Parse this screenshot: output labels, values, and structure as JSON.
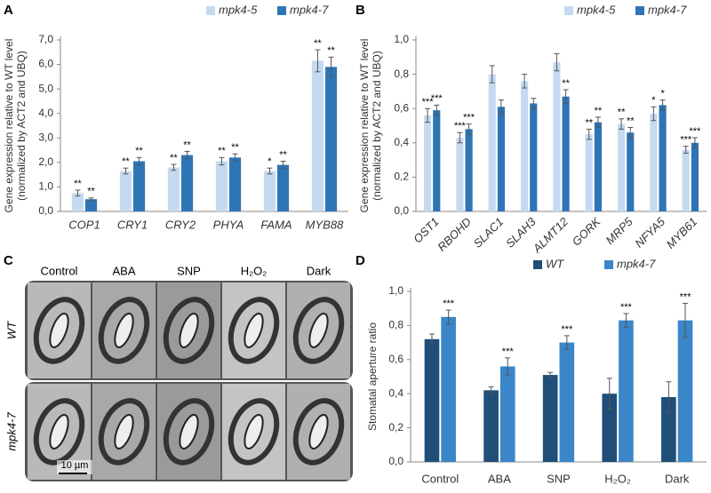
{
  "chart_data": [
    {
      "type": "bar",
      "panel": "A",
      "y_label": [
        "Gene expression relative to WT level",
        "(normalized by ACT2 and UBQ)"
      ],
      "categories": [
        "COP1",
        "CRY1",
        "CRY2",
        "PHYA",
        "FAMA",
        "MYB88"
      ],
      "series": [
        {
          "name": "mpk4-5",
          "color": "#c5daf0",
          "values": [
            0.75,
            1.65,
            1.8,
            2.05,
            1.65,
            6.15
          ],
          "errors": [
            0.12,
            0.12,
            0.12,
            0.15,
            0.12,
            0.45
          ],
          "annotations": [
            "**",
            "**",
            "**",
            "**",
            "*",
            "**"
          ]
        },
        {
          "name": "mpk4-7",
          "color": "#2e75b6",
          "values": [
            0.5,
            2.05,
            2.3,
            2.2,
            1.9,
            5.9
          ],
          "errors": [
            0.05,
            0.15,
            0.15,
            0.15,
            0.15,
            0.4
          ],
          "annotations": [
            "**",
            "**",
            "**",
            "**",
            "**",
            "**"
          ]
        }
      ],
      "ylim": [
        0,
        7
      ],
      "yticks": [
        {
          "value": 0,
          "label": "0,0"
        },
        {
          "value": 1,
          "label": "1,0"
        },
        {
          "value": 2,
          "label": "2,0"
        },
        {
          "value": 3,
          "label": "3,0"
        },
        {
          "value": 4,
          "label": "4,0"
        },
        {
          "value": 5,
          "label": "5,0"
        },
        {
          "value": 6,
          "label": "6,0"
        },
        {
          "value": 7,
          "label": "7,0"
        }
      ],
      "grid": false,
      "legend": "top-right"
    },
    {
      "type": "bar",
      "panel": "B",
      "y_label": [
        "Gene expression relative to WT level",
        "(normalized by ACT2 and UBQ)"
      ],
      "categories": [
        "OST1",
        "RBOHD",
        "SLAC1",
        "SLAH3",
        "ALMT12",
        "GORK",
        "MRP5",
        "NFYA5",
        "MYB61"
      ],
      "series": [
        {
          "name": "mpk4-5",
          "color": "#c5daf0",
          "values": [
            0.56,
            0.43,
            0.8,
            0.76,
            0.87,
            0.45,
            0.51,
            0.57,
            0.36
          ],
          "errors": [
            0.04,
            0.03,
            0.05,
            0.04,
            0.05,
            0.03,
            0.03,
            0.04,
            0.02
          ],
          "annotations": [
            "***",
            "***",
            null,
            null,
            null,
            "**",
            "**",
            "*",
            "***"
          ]
        },
        {
          "name": "mpk4-7",
          "color": "#2e75b6",
          "values": [
            0.59,
            0.48,
            0.61,
            0.63,
            0.67,
            0.52,
            0.46,
            0.62,
            0.4
          ],
          "errors": [
            0.03,
            0.03,
            0.04,
            0.03,
            0.04,
            0.03,
            0.03,
            0.03,
            0.03
          ],
          "annotations": [
            "***",
            "***",
            null,
            null,
            "**",
            "**",
            "**",
            "*",
            "***"
          ]
        }
      ],
      "ylim": [
        0,
        1
      ],
      "yticks": [
        {
          "value": 0,
          "label": "0,0"
        },
        {
          "value": 0.2,
          "label": "0,2"
        },
        {
          "value": 0.4,
          "label": "0,4"
        },
        {
          "value": 0.6,
          "label": "0,6"
        },
        {
          "value": 0.8,
          "label": "0,8"
        },
        {
          "value": 1,
          "label": "1,0"
        }
      ],
      "grid": false,
      "legend": "top-right"
    },
    {
      "type": "bar",
      "panel": "D",
      "y_label": [
        "Stomatal aperture ratio"
      ],
      "categories": [
        "Control",
        "ABA",
        "SNP",
        "H₂O₂",
        "Dark"
      ],
      "series": [
        {
          "name": "WT",
          "color": "#1f4e79",
          "values": [
            0.72,
            0.42,
            0.51,
            0.4,
            0.38
          ],
          "errors": [
            0.03,
            0.02,
            0.015,
            0.09,
            0.09
          ],
          "annotations": [
            null,
            null,
            null,
            null,
            null
          ]
        },
        {
          "name": "mpk4-7",
          "color": "#3a86c8",
          "values": [
            0.85,
            0.56,
            0.7,
            0.83,
            0.83
          ],
          "errors": [
            0.04,
            0.05,
            0.04,
            0.04,
            0.1
          ],
          "annotations": [
            "***",
            "***",
            "***",
            "***",
            "***"
          ]
        }
      ],
      "ylim": [
        0,
        1
      ],
      "yticks": [
        {
          "value": 0,
          "label": "0,0"
        },
        {
          "value": 0.2,
          "label": "0,2"
        },
        {
          "value": 0.4,
          "label": "0,4"
        },
        {
          "value": 0.6,
          "label": "0,6"
        },
        {
          "value": 0.8,
          "label": "0,8"
        },
        {
          "value": 1,
          "label": "1,0"
        }
      ],
      "grid": false,
      "legend": "top-right"
    }
  ],
  "panel_c": {
    "panel": "C",
    "columns": [
      "Control",
      "ABA",
      "SNP",
      "H₂O₂",
      "Dark"
    ],
    "rows": [
      "WT",
      "mpk4-7"
    ],
    "scale_bar": "10 µm"
  }
}
